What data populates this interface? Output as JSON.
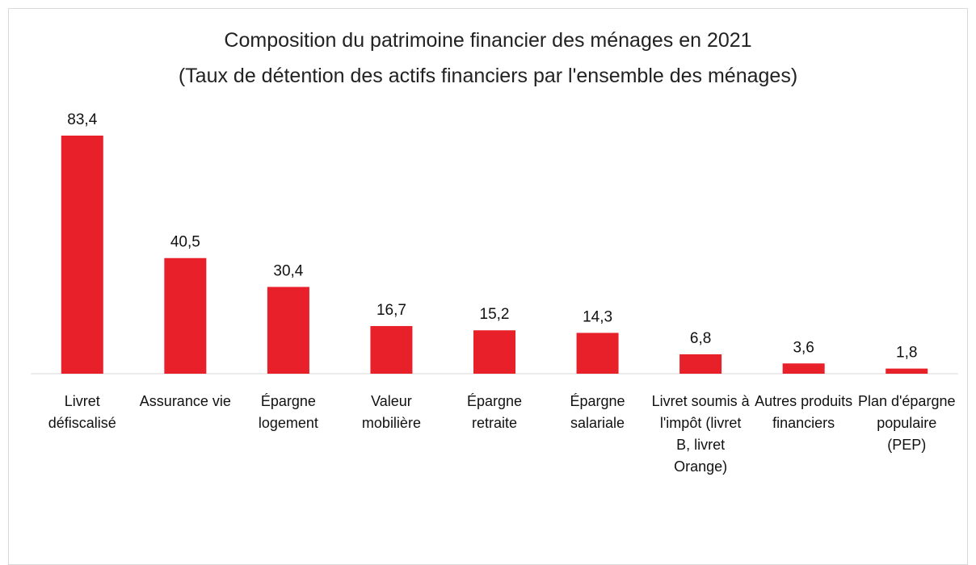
{
  "chart_data": {
    "type": "bar",
    "title": "Composition du patrimoine financier des ménages en 2021",
    "subtitle": "(Taux de détention des actifs financiers par l'ensemble des ménages)",
    "categories": [
      "Livret défiscalisé",
      "Assurance vie",
      "Épargne logement",
      "Valeur mobilière",
      "Épargne retraite",
      "Épargne salariale",
      "Livret soumis à l'impôt (livret B, livret Orange)",
      "Autres produits financiers",
      "Plan d'épargne populaire (PEP)"
    ],
    "values": [
      83.4,
      40.5,
      30.4,
      16.7,
      15.2,
      14.3,
      6.8,
      3.6,
      1.8
    ],
    "value_labels": [
      "83,4",
      "40,5",
      "30,4",
      "16,7",
      "15,2",
      "14,3",
      "6,8",
      "3,6",
      "1,8"
    ],
    "color": "#e8202a"
  }
}
